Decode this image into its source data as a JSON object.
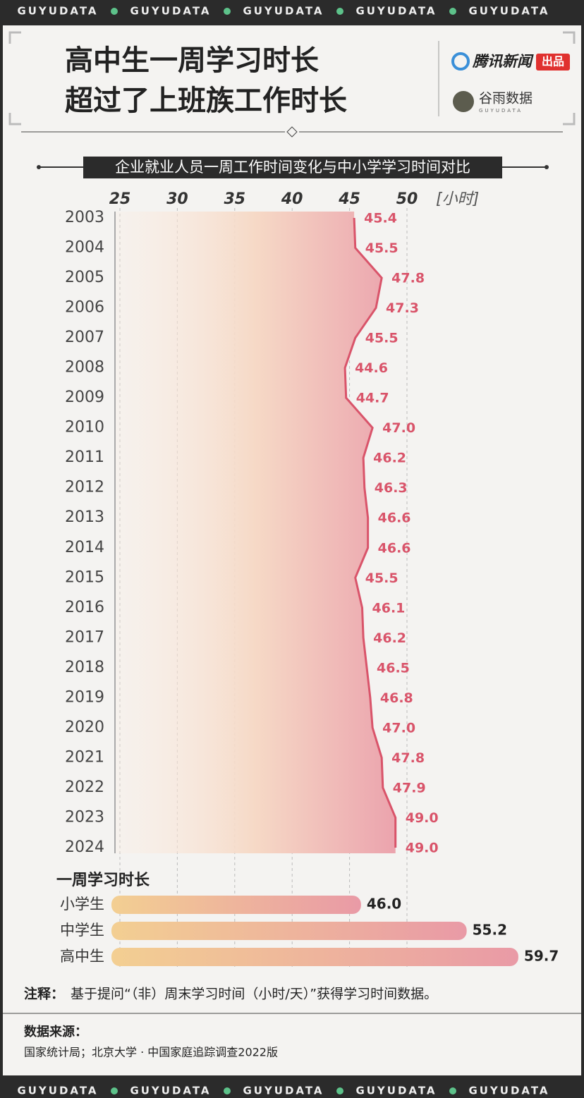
{
  "header": {
    "banner": "GUYUDATA",
    "title_line1": "高中生一周学习时长",
    "title_line2": "超过了上班族工作时长",
    "publisher": "腾讯新闻",
    "publisher_tag": "出品",
    "partner": "谷雨数据",
    "partner_sub": "GUYUDATA"
  },
  "chart_data": [
    {
      "type": "area",
      "title": "企业就业人员一周工作时间变化与中小学学习时间对比",
      "xlabel": "[小时]",
      "categories": [
        "2003",
        "2004",
        "2005",
        "2006",
        "2007",
        "2008",
        "2009",
        "2010",
        "2011",
        "2012",
        "2013",
        "2014",
        "2015",
        "2016",
        "2017",
        "2018",
        "2019",
        "2020",
        "2021",
        "2022",
        "2023",
        "2024"
      ],
      "values": [
        45.4,
        45.5,
        47.8,
        47.3,
        45.5,
        44.6,
        44.7,
        47.0,
        46.2,
        46.3,
        46.6,
        46.6,
        45.5,
        46.1,
        46.2,
        46.5,
        46.8,
        47.0,
        47.8,
        47.9,
        49.0,
        49.0
      ],
      "value_labels": [
        "45.4",
        "45.5",
        "47.8",
        "47.3",
        "45.5",
        "44.6",
        "44.7",
        "47.0",
        "46.2",
        "46.3",
        "46.6",
        "46.6",
        "45.5",
        "46.1",
        "46.2",
        "46.5",
        "46.8",
        "47.0",
        "47.8",
        "47.9",
        "49.0",
        "49.0"
      ],
      "color": "#d9546a",
      "xlim": [
        25,
        50
      ],
      "xticks": [
        25,
        30,
        35,
        40,
        45,
        50
      ],
      "grid": true
    },
    {
      "type": "hbar",
      "title": "一周学习时长",
      "categories": [
        "小学生",
        "中学生",
        "高中生"
      ],
      "values": [
        46.0,
        55.2,
        59.7
      ],
      "value_labels": [
        "46.0",
        "55.2",
        "59.7"
      ],
      "colors": [
        "#f3cf92",
        "#e99aa6"
      ],
      "xlim": [
        25,
        50
      ]
    }
  ],
  "footer": {
    "note_label": "注释：",
    "note": "基于提问“（非）周末学习时间（小时/天）”获得学习时间数据。",
    "source_label": "数据来源：",
    "source": "国家统计局；北京大学 · 中国家庭追踪调查2022版"
  }
}
